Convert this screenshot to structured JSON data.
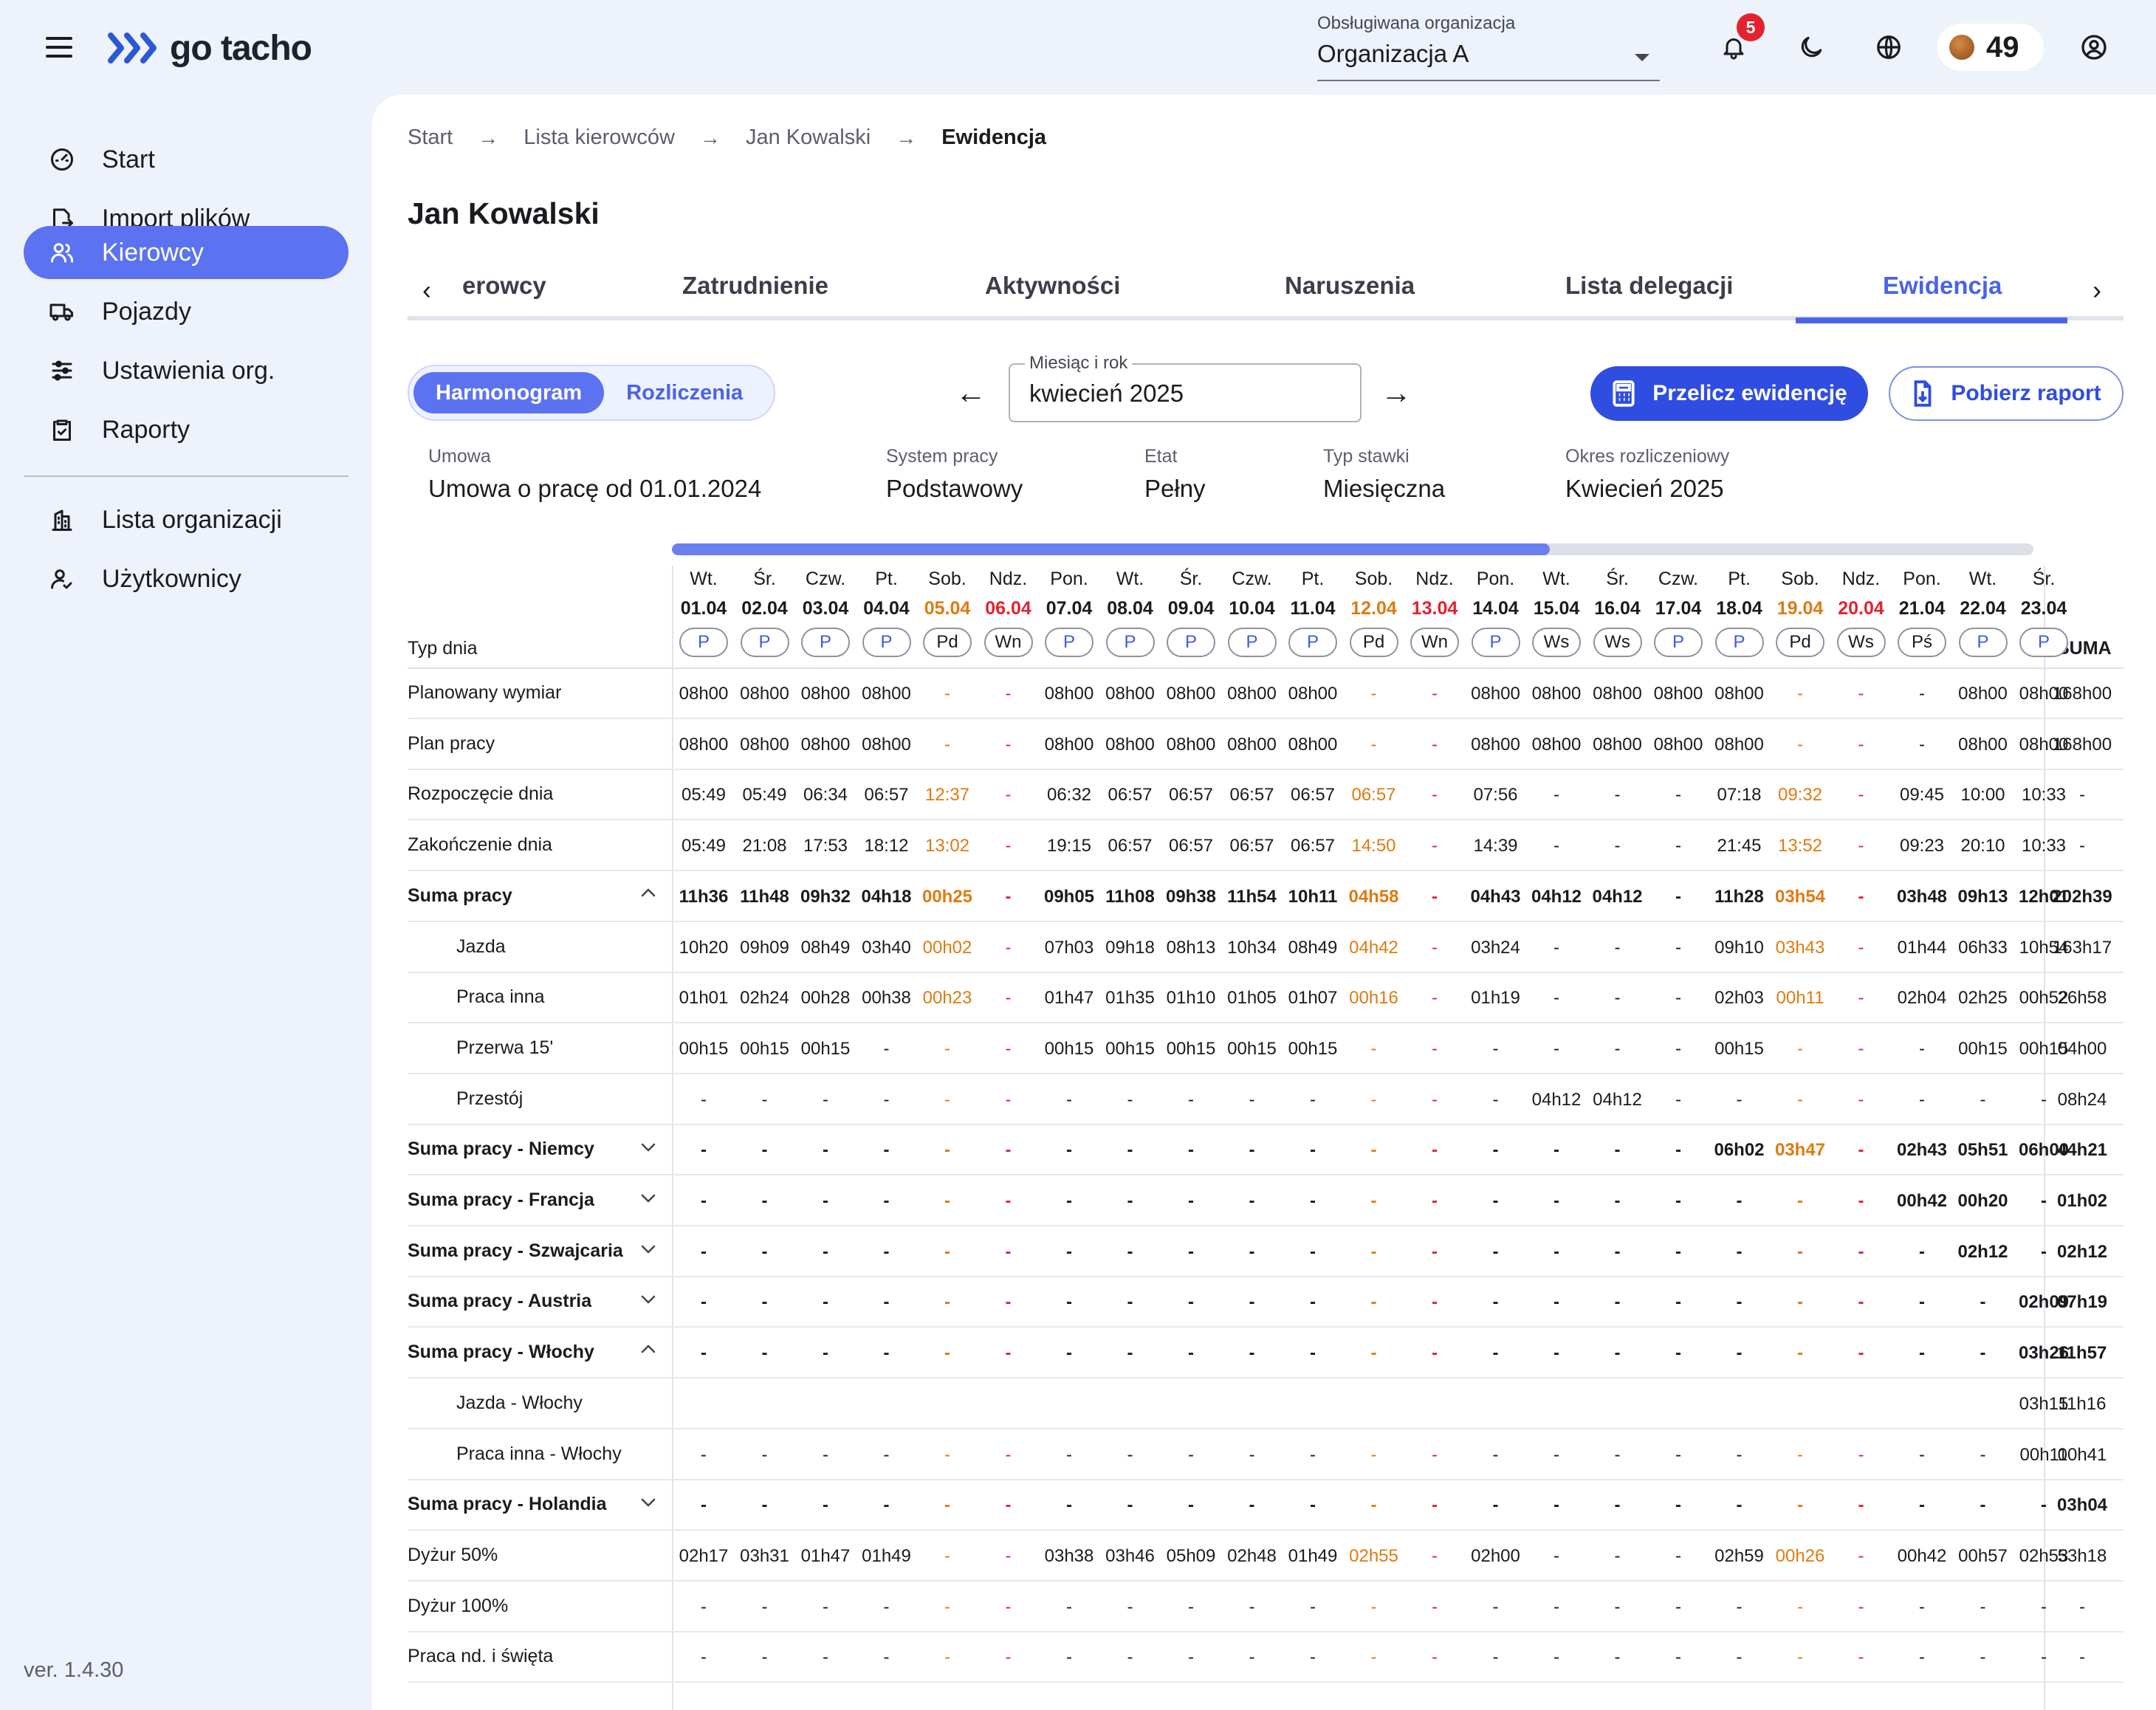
{
  "app": {
    "brand": "go tacho",
    "version": "ver. 1.4.30"
  },
  "header": {
    "org_label": "Obsługiwana organizacja",
    "org_value": "Organizacja A",
    "notifications": "5",
    "coins": "49"
  },
  "sidebar": {
    "items": [
      {
        "label": "Start",
        "icon": "dashboard-icon"
      },
      {
        "label": "Import plików",
        "icon": "import-icon"
      },
      {
        "label": "Kierowcy",
        "icon": "drivers-icon",
        "active": true
      },
      {
        "label": "Pojazdy",
        "icon": "truck-icon"
      },
      {
        "label": "Ustawienia org.",
        "icon": "sliders-icon"
      },
      {
        "label": "Raporty",
        "icon": "clipboard-icon"
      },
      {
        "label": "Lista organizacji",
        "icon": "building-icon"
      },
      {
        "label": "Użytkownicy",
        "icon": "user-check-icon"
      }
    ]
  },
  "breadcrumb": [
    "Start",
    "Lista kierowców",
    "Jan Kowalski",
    "Ewidencja"
  ],
  "page_title": "Jan Kowalski",
  "tabs": [
    {
      "label": "erowcy"
    },
    {
      "label": "Zatrudnienie"
    },
    {
      "label": "Aktywności"
    },
    {
      "label": "Naruszenia"
    },
    {
      "label": "Lista delegacji"
    },
    {
      "label": "Ewidencja",
      "active": true
    }
  ],
  "segments": {
    "harmonogram": "Harmonogram",
    "rozliczenia": "Rozliczenia"
  },
  "month_picker": {
    "label": "Miesiąc i rok",
    "value": "kwiecień 2025"
  },
  "buttons": {
    "przelicz": "Przelicz ewidencję",
    "raport": "Pobierz raport"
  },
  "info": {
    "umowa_label": "Umowa",
    "umowa_value": "Umowa o pracę od 01.01.2024",
    "system_label": "System pracy",
    "system_value": "Podstawowy",
    "etat_label": "Etat",
    "etat_value": "Pełny",
    "stawka_label": "Typ stawki",
    "stawka_value": "Miesięczna",
    "okres_label": "Okres rozliczeniowy",
    "okres_value": "Kwiecień 2025"
  },
  "schedule": {
    "scroll_fraction": 0.645,
    "typ_dnia_label": "Typ dnia",
    "suma_label": "SUMA",
    "days": [
      {
        "name": "Wt.",
        "date": "01.04",
        "type": "P",
        "kind": "work"
      },
      {
        "name": "Śr.",
        "date": "02.04",
        "type": "P",
        "kind": "work"
      },
      {
        "name": "Czw.",
        "date": "03.04",
        "type": "P",
        "kind": "work"
      },
      {
        "name": "Pt.",
        "date": "04.04",
        "type": "P",
        "kind": "work"
      },
      {
        "name": "Sob.",
        "date": "05.04",
        "type": "Pd",
        "kind": "sat"
      },
      {
        "name": "Ndz.",
        "date": "06.04",
        "type": "Wn",
        "kind": "sun"
      },
      {
        "name": "Pon.",
        "date": "07.04",
        "type": "P",
        "kind": "work"
      },
      {
        "name": "Wt.",
        "date": "08.04",
        "type": "P",
        "kind": "work"
      },
      {
        "name": "Śr.",
        "date": "09.04",
        "type": "P",
        "kind": "work"
      },
      {
        "name": "Czw.",
        "date": "10.04",
        "type": "P",
        "kind": "work"
      },
      {
        "name": "Pt.",
        "date": "11.04",
        "type": "P",
        "kind": "work"
      },
      {
        "name": "Sob.",
        "date": "12.04",
        "type": "Pd",
        "kind": "sat"
      },
      {
        "name": "Ndz.",
        "date": "13.04",
        "type": "Wn",
        "kind": "sun"
      },
      {
        "name": "Pon.",
        "date": "14.04",
        "type": "P",
        "kind": "work"
      },
      {
        "name": "Wt.",
        "date": "15.04",
        "type": "Ws",
        "kind": "work"
      },
      {
        "name": "Śr.",
        "date": "16.04",
        "type": "Ws",
        "kind": "work"
      },
      {
        "name": "Czw.",
        "date": "17.04",
        "type": "P",
        "kind": "work"
      },
      {
        "name": "Pt.",
        "date": "18.04",
        "type": "P",
        "kind": "work"
      },
      {
        "name": "Sob.",
        "date": "19.04",
        "type": "Pd",
        "kind": "sat"
      },
      {
        "name": "Ndz.",
        "date": "20.04",
        "type": "Ws",
        "kind": "sun"
      },
      {
        "name": "Pon.",
        "date": "21.04",
        "type": "Pś",
        "kind": "work"
      },
      {
        "name": "Wt.",
        "date": "22.04",
        "type": "P",
        "kind": "work"
      },
      {
        "name": "Śr.",
        "date": "23.04",
        "type": "P",
        "kind": "work"
      }
    ],
    "rows": [
      {
        "label": "Planowany wymiar",
        "style": "normal",
        "values": [
          "08h00",
          "08h00",
          "08h00",
          "08h00",
          "-",
          "-",
          "08h00",
          "08h00",
          "08h00",
          "08h00",
          "08h00",
          "-",
          "-",
          "08h00",
          "08h00",
          "08h00",
          "08h00",
          "08h00",
          "-",
          "-",
          "-",
          "08h00",
          "08h00"
        ],
        "sum": "168h00"
      },
      {
        "label": "Plan pracy",
        "style": "normal",
        "values": [
          "08h00",
          "08h00",
          "08h00",
          "08h00",
          "-",
          "-",
          "08h00",
          "08h00",
          "08h00",
          "08h00",
          "08h00",
          "-",
          "-",
          "08h00",
          "08h00",
          "08h00",
          "08h00",
          "08h00",
          "-",
          "-",
          "-",
          "08h00",
          "08h00"
        ],
        "sum": "168h00"
      },
      {
        "label": "Rozpoczęcie dnia",
        "style": "normal",
        "values": [
          "05:49",
          "05:49",
          "06:34",
          "06:57",
          "12:37",
          "-",
          "06:32",
          "06:57",
          "06:57",
          "06:57",
          "06:57",
          "06:57",
          "-",
          "07:56",
          "-",
          "-",
          "-",
          "07:18",
          "09:32",
          "-",
          "09:45",
          "10:00",
          "10:33"
        ],
        "sum": "-"
      },
      {
        "label": "Zakończenie dnia",
        "style": "normal",
        "values": [
          "05:49",
          "21:08",
          "17:53",
          "18:12",
          "13:02",
          "-",
          "19:15",
          "06:57",
          "06:57",
          "06:57",
          "06:57",
          "14:50",
          "-",
          "14:39",
          "-",
          "-",
          "-",
          "21:45",
          "13:52",
          "-",
          "09:23",
          "20:10",
          "10:33"
        ],
        "sum": "-"
      },
      {
        "label": "Suma pracy",
        "style": "bold",
        "toggle": "up",
        "values": [
          "11h36",
          "11h48",
          "09h32",
          "04h18",
          "00h25",
          "-",
          "09h05",
          "11h08",
          "09h38",
          "11h54",
          "10h11",
          "04h58",
          "-",
          "04h43",
          "04h12",
          "04h12",
          "-",
          "11h28",
          "03h54",
          "-",
          "03h48",
          "09h13",
          "12h01"
        ],
        "sum": "202h39"
      },
      {
        "label": "Jazda",
        "style": "sub",
        "values": [
          "10h20",
          "09h09",
          "08h49",
          "03h40",
          "00h02",
          "-",
          "07h03",
          "09h18",
          "08h13",
          "10h34",
          "08h49",
          "04h42",
          "-",
          "03h24",
          "-",
          "-",
          "-",
          "09h10",
          "03h43",
          "-",
          "01h44",
          "06h33",
          "10h54"
        ],
        "sum": "163h17"
      },
      {
        "label": "Praca inna",
        "style": "sub",
        "values": [
          "01h01",
          "02h24",
          "00h28",
          "00h38",
          "00h23",
          "-",
          "01h47",
          "01h35",
          "01h10",
          "01h05",
          "01h07",
          "00h16",
          "-",
          "01h19",
          "-",
          "-",
          "-",
          "02h03",
          "00h11",
          "-",
          "02h04",
          "02h25",
          "00h52"
        ],
        "sum": "26h58"
      },
      {
        "label": "Przerwa 15'",
        "style": "sub",
        "values": [
          "00h15",
          "00h15",
          "00h15",
          "-",
          "-",
          "-",
          "00h15",
          "00h15",
          "00h15",
          "00h15",
          "00h15",
          "-",
          "-",
          "-",
          "-",
          "-",
          "-",
          "00h15",
          "-",
          "-",
          "-",
          "00h15",
          "00h15"
        ],
        "sum": "04h00"
      },
      {
        "label": "Przestój",
        "style": "sub",
        "values": [
          "-",
          "-",
          "-",
          "-",
          "-",
          "-",
          "-",
          "-",
          "-",
          "-",
          "-",
          "-",
          "-",
          "-",
          "04h12",
          "04h12",
          "-",
          "-",
          "-",
          "-",
          "-",
          "-",
          "-"
        ],
        "sum": "08h24"
      },
      {
        "label": "Suma pracy - Niemcy",
        "style": "bold",
        "toggle": "down",
        "values": [
          "-",
          "-",
          "-",
          "-",
          "-",
          "-",
          "-",
          "-",
          "-",
          "-",
          "-",
          "-",
          "-",
          "-",
          "-",
          "-",
          "-",
          "06h02",
          "03h47",
          "-",
          "02h43",
          "05h51",
          "06h00"
        ],
        "sum": "44h21"
      },
      {
        "label": "Suma pracy - Francja",
        "style": "bold",
        "toggle": "down",
        "values": [
          "-",
          "-",
          "-",
          "-",
          "-",
          "-",
          "-",
          "-",
          "-",
          "-",
          "-",
          "-",
          "-",
          "-",
          "-",
          "-",
          "-",
          "-",
          "-",
          "-",
          "00h42",
          "00h20",
          "-"
        ],
        "sum": "01h02"
      },
      {
        "label": "Suma pracy - Szwajcaria",
        "style": "bold",
        "toggle": "down",
        "values": [
          "-",
          "-",
          "-",
          "-",
          "-",
          "-",
          "-",
          "-",
          "-",
          "-",
          "-",
          "-",
          "-",
          "-",
          "-",
          "-",
          "-",
          "-",
          "-",
          "-",
          "-",
          "02h12",
          "-"
        ],
        "sum": "02h12"
      },
      {
        "label": "Suma pracy - Austria",
        "style": "bold",
        "toggle": "down",
        "values": [
          "-",
          "-",
          "-",
          "-",
          "-",
          "-",
          "-",
          "-",
          "-",
          "-",
          "-",
          "-",
          "-",
          "-",
          "-",
          "-",
          "-",
          "-",
          "-",
          "-",
          "-",
          "-",
          "02h09"
        ],
        "sum": "07h19"
      },
      {
        "label": "Suma pracy - Włochy",
        "style": "bold",
        "toggle": "up",
        "values": [
          "-",
          "-",
          "-",
          "-",
          "-",
          "-",
          "-",
          "-",
          "-",
          "-",
          "-",
          "-",
          "-",
          "-",
          "-",
          "-",
          "-",
          "-",
          "-",
          "-",
          "-",
          "-",
          "03h26"
        ],
        "sum": "11h57"
      },
      {
        "label": "Jazda - Włochy",
        "style": "sub",
        "values": [
          "",
          "",
          "",
          "",
          "",
          "",
          "",
          "",
          "",
          "",
          "",
          "",
          "",
          "",
          "",
          "",
          "",
          "",
          "",
          "",
          "",
          "",
          "03h15"
        ],
        "sum": "11h16"
      },
      {
        "label": "Praca inna - Włochy",
        "style": "sub",
        "values": [
          "-",
          "-",
          "-",
          "-",
          "-",
          "-",
          "-",
          "-",
          "-",
          "-",
          "-",
          "-",
          "-",
          "-",
          "-",
          "-",
          "-",
          "-",
          "-",
          "-",
          "-",
          "-",
          "00h11"
        ],
        "sum": "00h41"
      },
      {
        "label": "Suma pracy - Holandia",
        "style": "bold",
        "toggle": "down",
        "values": [
          "-",
          "-",
          "-",
          "-",
          "-",
          "-",
          "-",
          "-",
          "-",
          "-",
          "-",
          "-",
          "-",
          "-",
          "-",
          "-",
          "-",
          "-",
          "-",
          "-",
          "-",
          "-",
          "-"
        ],
        "sum": "03h04"
      },
      {
        "label": "Dyżur 50%",
        "style": "normal",
        "values": [
          "02h17",
          "03h31",
          "01h47",
          "01h49",
          "-",
          "-",
          "03h38",
          "03h46",
          "05h09",
          "02h48",
          "01h49",
          "02h55",
          "-",
          "02h00",
          "-",
          "-",
          "-",
          "02h59",
          "00h26",
          "-",
          "00h42",
          "00h57",
          "02h53"
        ],
        "sum": "53h18"
      },
      {
        "label": "Dyżur 100%",
        "style": "normal",
        "values": [
          "-",
          "-",
          "-",
          "-",
          "-",
          "-",
          "-",
          "-",
          "-",
          "-",
          "-",
          "-",
          "-",
          "-",
          "-",
          "-",
          "-",
          "-",
          "-",
          "-",
          "-",
          "-",
          "-"
        ],
        "sum": "-"
      },
      {
        "label": "Praca nd. i święta",
        "style": "normal",
        "values": [
          "-",
          "-",
          "-",
          "-",
          "-",
          "-",
          "-",
          "-",
          "-",
          "-",
          "-",
          "-",
          "-",
          "-",
          "-",
          "-",
          "-",
          "-",
          "-",
          "-",
          "-",
          "-",
          "-"
        ],
        "sum": "-"
      }
    ]
  }
}
